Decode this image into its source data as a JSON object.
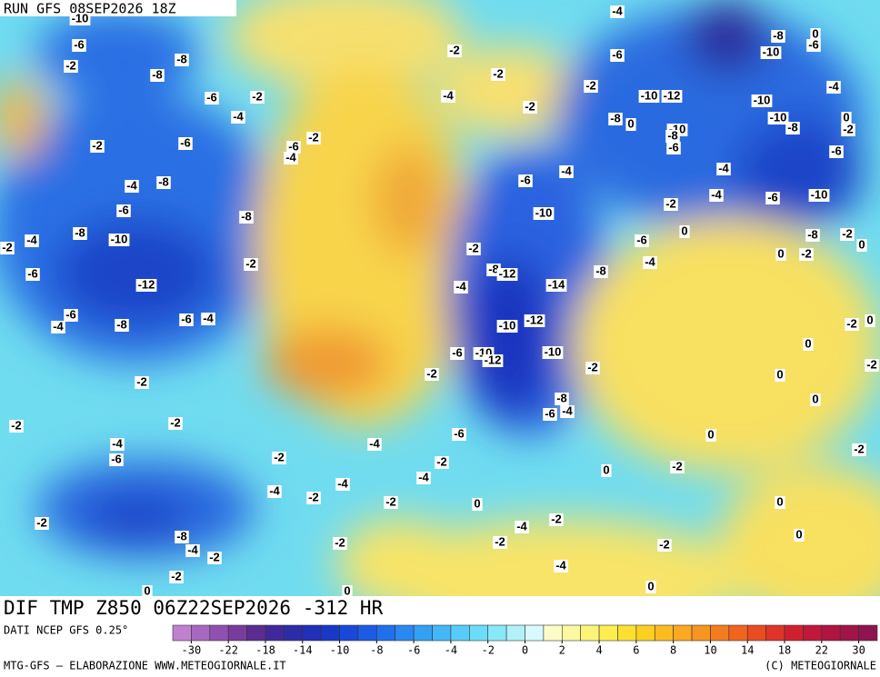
{
  "header": {
    "run": "RUN GFS 08SEP2026 18Z"
  },
  "map": {
    "title": "DIF TMP Z850 06Z22SEP2026 -312 HR",
    "contour_labels": [
      -10,
      -6,
      -2,
      -8,
      -8,
      -6,
      -2,
      -4,
      -6,
      -2,
      -8,
      -4,
      -6,
      -8,
      -8,
      -10,
      -4,
      -2,
      -2,
      -6,
      -12,
      -6,
      -4,
      -8,
      -4,
      -6,
      -2,
      -2,
      -2,
      -4,
      -6,
      -2,
      -4,
      -2,
      -4,
      -4,
      -4,
      -2,
      -2,
      -2,
      -8,
      -4,
      -2,
      -2,
      -2,
      0,
      0,
      -6,
      -2,
      -4,
      -2,
      -4,
      -2,
      -2,
      -4,
      -6,
      -2,
      -10,
      -12,
      -8,
      0,
      -10,
      -8,
      -6,
      -8,
      -10,
      0,
      -6,
      -4,
      -10,
      -10,
      -8,
      0,
      -2,
      -6,
      -4,
      -4,
      -6,
      -10,
      -2,
      -4,
      -6,
      -10,
      -6,
      0,
      -4,
      -8,
      -2,
      -8,
      -12,
      -14,
      -4,
      -12,
      -10,
      -6,
      -10,
      -12,
      -10,
      -2,
      -2,
      -8,
      -6,
      -4,
      -6,
      -8,
      -2,
      0,
      0,
      -2,
      -2,
      0,
      0,
      -2,
      0,
      0,
      0,
      -2,
      -2,
      0,
      0,
      -4,
      -2,
      -2,
      -2,
      -4,
      0,
      0,
      0,
      -2,
      -2
    ]
  },
  "colorbar": {
    "colors": [
      "#c080d0",
      "#a868c0",
      "#9050b0",
      "#783c9c",
      "#5c2c90",
      "#40289c",
      "#2c2ca8",
      "#2030b8",
      "#1838c8",
      "#1848d8",
      "#1c5ce4",
      "#2070ec",
      "#2a88f0",
      "#34a0f4",
      "#44b8f6",
      "#58ccf8",
      "#6cdcf8",
      "#88e8f8",
      "#b0f2f8",
      "#d8fafc",
      "#fcfcc8",
      "#fcf8a0",
      "#fcf478",
      "#fcee50",
      "#fce030",
      "#fcd020",
      "#fcbc20",
      "#fca820",
      "#f89420",
      "#f47c20",
      "#f06420",
      "#e84c20",
      "#e03428",
      "#d02030",
      "#c01838",
      "#b01440",
      "#a01448",
      "#901450"
    ],
    "labels": [
      -30,
      -22,
      -18,
      -14,
      -10,
      -8,
      -6,
      -4,
      -2,
      0,
      2,
      4,
      6,
      8,
      10,
      14,
      18,
      22,
      30
    ]
  },
  "footer": {
    "source": "DATI NCEP GFS 0.25°",
    "credit": "MTG-GFS – ELABORAZIONE WWW.METEOGIORNALE.IT",
    "copyright": "(C) METEOGIORNALE"
  }
}
